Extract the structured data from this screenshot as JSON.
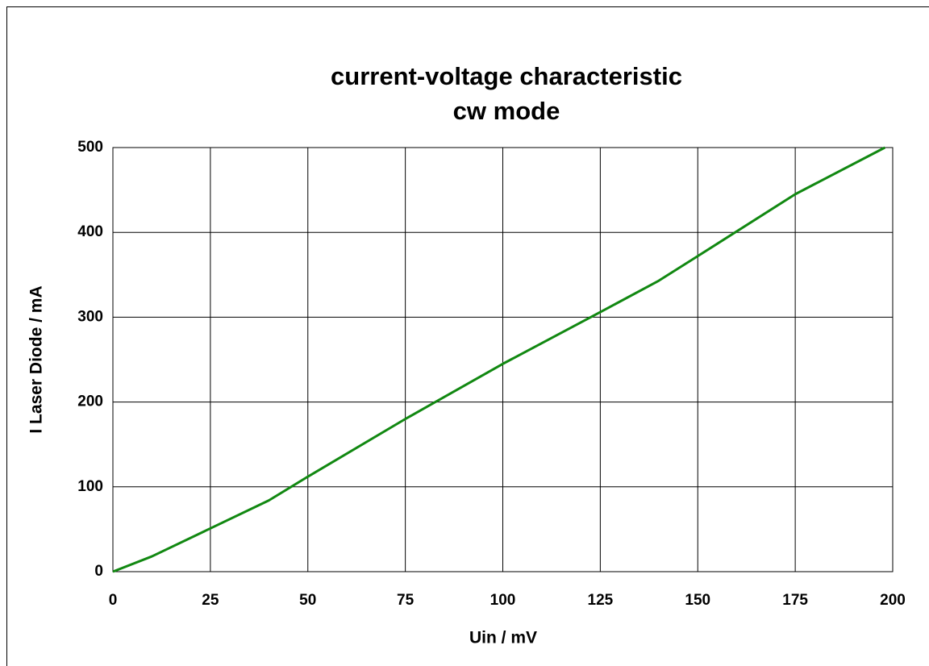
{
  "chart_data": {
    "type": "line",
    "title": "current-voltage characteristic",
    "subtitle": "cw mode",
    "x_label": "Uin / mV",
    "y_label": "I Laser Diode / mA",
    "x": [
      0,
      10,
      40,
      50,
      75,
      100,
      125,
      140,
      150,
      175,
      180,
      198
    ],
    "series": [
      {
        "color": "#118811",
        "values": [
          0,
          18,
          84,
          112,
          180,
          245,
          306,
          343,
          372,
          445,
          457,
          500
        ]
      }
    ],
    "xlim": [
      0,
      200
    ],
    "xticks": [
      0,
      25,
      50,
      75,
      100,
      125,
      150,
      175,
      200
    ],
    "ylim": [
      0,
      500
    ],
    "yticks": [
      0,
      100,
      200,
      300,
      400,
      500
    ],
    "grid": true
  }
}
